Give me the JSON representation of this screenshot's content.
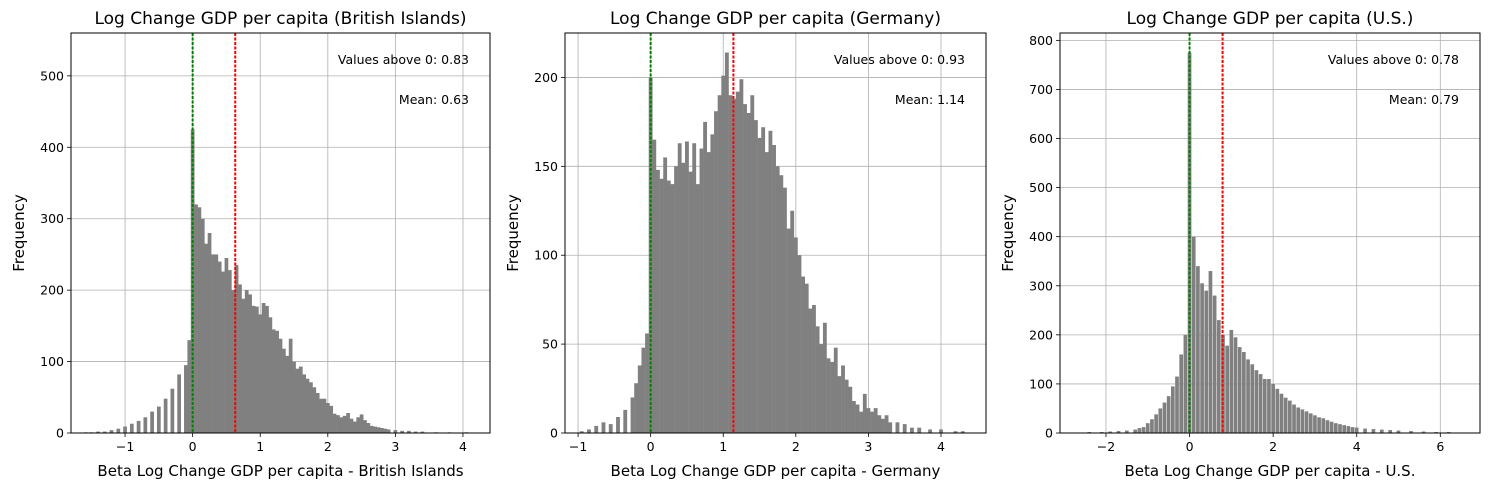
{
  "chart_data": [
    {
      "type": "bar",
      "title": "Log Change GDP per capita (British Islands)",
      "xlabel": "Beta Log Change GDP per capita - British Islands",
      "ylabel": "Frequency",
      "xlim": [
        -1.8,
        4.4
      ],
      "ylim": [
        0,
        560
      ],
      "xticks": [
        -1,
        0,
        1,
        2,
        3,
        4
      ],
      "yticks": [
        0,
        100,
        200,
        300,
        400,
        500
      ],
      "grid": true,
      "bar_color": "#808080",
      "bin_width": 0.055,
      "bins": [
        [
          -1.58,
          1
        ],
        [
          -1.5,
          1
        ],
        [
          -1.4,
          2
        ],
        [
          -1.3,
          2
        ],
        [
          -1.2,
          4
        ],
        [
          -1.1,
          6
        ],
        [
          -1.0,
          9
        ],
        [
          -0.9,
          13
        ],
        [
          -0.8,
          17
        ],
        [
          -0.7,
          22
        ],
        [
          -0.6,
          30
        ],
        [
          -0.5,
          37
        ],
        [
          -0.4,
          48
        ],
        [
          -0.3,
          62
        ],
        [
          -0.2,
          82
        ],
        [
          -0.1,
          95
        ],
        [
          -0.05,
          130
        ],
        [
          0.0,
          425
        ],
        [
          0.05,
          320
        ],
        [
          0.1,
          316
        ],
        [
          0.15,
          300
        ],
        [
          0.2,
          265
        ],
        [
          0.25,
          280
        ],
        [
          0.3,
          250
        ],
        [
          0.35,
          250
        ],
        [
          0.4,
          240
        ],
        [
          0.45,
          226
        ],
        [
          0.5,
          245
        ],
        [
          0.55,
          228
        ],
        [
          0.6,
          200
        ],
        [
          0.65,
          235
        ],
        [
          0.7,
          208
        ],
        [
          0.75,
          188
        ],
        [
          0.8,
          200
        ],
        [
          0.85,
          194
        ],
        [
          0.9,
          178
        ],
        [
          0.95,
          177
        ],
        [
          1.0,
          166
        ],
        [
          1.05,
          182
        ],
        [
          1.1,
          178
        ],
        [
          1.15,
          162
        ],
        [
          1.2,
          145
        ],
        [
          1.25,
          143
        ],
        [
          1.3,
          132
        ],
        [
          1.35,
          118
        ],
        [
          1.4,
          108
        ],
        [
          1.45,
          132
        ],
        [
          1.5,
          100
        ],
        [
          1.55,
          90
        ],
        [
          1.6,
          93
        ],
        [
          1.65,
          82
        ],
        [
          1.7,
          76
        ],
        [
          1.75,
          71
        ],
        [
          1.8,
          64
        ],
        [
          1.85,
          56
        ],
        [
          1.9,
          48
        ],
        [
          1.95,
          48
        ],
        [
          2.0,
          42
        ],
        [
          2.05,
          38
        ],
        [
          2.1,
          27
        ],
        [
          2.15,
          25
        ],
        [
          2.2,
          22
        ],
        [
          2.25,
          24
        ],
        [
          2.3,
          28
        ],
        [
          2.35,
          20
        ],
        [
          2.4,
          16
        ],
        [
          2.45,
          22
        ],
        [
          2.5,
          26
        ],
        [
          2.55,
          18
        ],
        [
          2.6,
          14
        ],
        [
          2.65,
          10
        ],
        [
          2.7,
          9
        ],
        [
          2.75,
          8
        ],
        [
          2.8,
          7
        ],
        [
          2.85,
          6
        ],
        [
          2.9,
          5
        ],
        [
          3.0,
          4
        ],
        [
          3.1,
          3
        ],
        [
          3.2,
          3
        ],
        [
          3.3,
          2
        ],
        [
          3.4,
          2
        ],
        [
          3.6,
          1
        ],
        [
          3.8,
          1
        ],
        [
          4.05,
          1
        ]
      ],
      "zero_line": 0,
      "mean": 0.63,
      "zero_line_color": "#008000",
      "mean_line_color": "#ff0000",
      "annotations": {
        "above_zero": "Values above 0: 0.83",
        "mean": "Mean: 0.63"
      }
    },
    {
      "type": "bar",
      "title": "Log Change GDP per capita (Germany)",
      "xlabel": "Beta Log Change GDP per capita - Germany",
      "ylabel": "Frequency",
      "xlim": [
        -1.18,
        4.62
      ],
      "ylim": [
        0,
        225
      ],
      "xticks": [
        -1,
        0,
        1,
        2,
        3,
        4
      ],
      "yticks": [
        0,
        50,
        100,
        150,
        200
      ],
      "grid": true,
      "bar_color": "#808080",
      "bin_width": 0.053,
      "bins": [
        [
          -0.95,
          1
        ],
        [
          -0.85,
          2
        ],
        [
          -0.75,
          4
        ],
        [
          -0.65,
          6
        ],
        [
          -0.55,
          5
        ],
        [
          -0.45,
          9
        ],
        [
          -0.35,
          13
        ],
        [
          -0.25,
          20
        ],
        [
          -0.2,
          28
        ],
        [
          -0.15,
          38
        ],
        [
          -0.1,
          48
        ],
        [
          -0.05,
          56
        ],
        [
          0.0,
          200
        ],
        [
          0.05,
          165
        ],
        [
          0.1,
          148
        ],
        [
          0.15,
          143
        ],
        [
          0.2,
          155
        ],
        [
          0.25,
          142
        ],
        [
          0.3,
          140
        ],
        [
          0.35,
          150
        ],
        [
          0.4,
          163
        ],
        [
          0.45,
          152
        ],
        [
          0.5,
          164
        ],
        [
          0.55,
          147
        ],
        [
          0.6,
          163
        ],
        [
          0.65,
          140
        ],
        [
          0.7,
          160
        ],
        [
          0.75,
          175
        ],
        [
          0.8,
          158
        ],
        [
          0.85,
          168
        ],
        [
          0.9,
          181
        ],
        [
          0.95,
          190
        ],
        [
          1.0,
          201
        ],
        [
          1.05,
          214
        ],
        [
          1.1,
          190
        ],
        [
          1.15,
          188
        ],
        [
          1.2,
          192
        ],
        [
          1.25,
          199
        ],
        [
          1.3,
          185
        ],
        [
          1.35,
          180
        ],
        [
          1.4,
          190
        ],
        [
          1.45,
          176
        ],
        [
          1.5,
          166
        ],
        [
          1.55,
          172
        ],
        [
          1.6,
          158
        ],
        [
          1.65,
          170
        ],
        [
          1.7,
          162
        ],
        [
          1.75,
          150
        ],
        [
          1.8,
          145
        ],
        [
          1.85,
          138
        ],
        [
          1.9,
          115
        ],
        [
          1.95,
          125
        ],
        [
          2.0,
          110
        ],
        [
          2.05,
          100
        ],
        [
          2.1,
          88
        ],
        [
          2.15,
          84
        ],
        [
          2.2,
          70
        ],
        [
          2.25,
          72
        ],
        [
          2.3,
          60
        ],
        [
          2.35,
          50
        ],
        [
          2.4,
          62
        ],
        [
          2.45,
          42
        ],
        [
          2.5,
          40
        ],
        [
          2.55,
          48
        ],
        [
          2.6,
          32
        ],
        [
          2.65,
          38
        ],
        [
          2.7,
          30
        ],
        [
          2.75,
          26
        ],
        [
          2.8,
          18
        ],
        [
          2.85,
          16
        ],
        [
          2.9,
          12
        ],
        [
          2.95,
          22
        ],
        [
          3.0,
          14
        ],
        [
          3.05,
          12
        ],
        [
          3.1,
          14
        ],
        [
          3.15,
          10
        ],
        [
          3.2,
          8
        ],
        [
          3.25,
          10
        ],
        [
          3.3,
          6
        ],
        [
          3.4,
          6
        ],
        [
          3.5,
          5
        ],
        [
          3.6,
          3
        ],
        [
          3.7,
          3
        ],
        [
          3.85,
          2
        ],
        [
          4.0,
          2
        ],
        [
          4.2,
          1
        ],
        [
          4.3,
          1
        ]
      ],
      "zero_line": 0,
      "mean": 1.14,
      "zero_line_color": "#008000",
      "mean_line_color": "#ff0000",
      "annotations": {
        "above_zero": "Values above 0: 0.93",
        "mean": "Mean: 1.14"
      }
    },
    {
      "type": "bar",
      "title": "Log Change GDP per capita (U.S.)",
      "xlabel": "Beta Log Change GDP per capita - U.S.",
      "ylabel": "Frequency",
      "xlim": [
        -3.1,
        6.95
      ],
      "ylim": [
        0,
        815
      ],
      "xticks": [
        -2,
        0,
        2,
        4,
        6
      ],
      "yticks": [
        0,
        100,
        200,
        300,
        400,
        500,
        600,
        700,
        800
      ],
      "grid": true,
      "bar_color": "#808080",
      "bin_width": 0.088,
      "bins": [
        [
          -2.7,
          1
        ],
        [
          -2.4,
          2
        ],
        [
          -2.1,
          2
        ],
        [
          -1.9,
          3
        ],
        [
          -1.7,
          4
        ],
        [
          -1.5,
          5
        ],
        [
          -1.3,
          7
        ],
        [
          -1.2,
          10
        ],
        [
          -1.1,
          12
        ],
        [
          -1.0,
          20
        ],
        [
          -0.9,
          28
        ],
        [
          -0.8,
          38
        ],
        [
          -0.7,
          50
        ],
        [
          -0.6,
          62
        ],
        [
          -0.5,
          75
        ],
        [
          -0.4,
          95
        ],
        [
          -0.3,
          115
        ],
        [
          -0.2,
          160
        ],
        [
          -0.1,
          200
        ],
        [
          0.0,
          775
        ],
        [
          0.1,
          400
        ],
        [
          0.2,
          340
        ],
        [
          0.3,
          305
        ],
        [
          0.4,
          290
        ],
        [
          0.5,
          330
        ],
        [
          0.6,
          280
        ],
        [
          0.7,
          230
        ],
        [
          0.8,
          200
        ],
        [
          0.9,
          178
        ],
        [
          1.0,
          210
        ],
        [
          1.1,
          195
        ],
        [
          1.2,
          175
        ],
        [
          1.3,
          165
        ],
        [
          1.4,
          150
        ],
        [
          1.5,
          140
        ],
        [
          1.6,
          128
        ],
        [
          1.7,
          120
        ],
        [
          1.8,
          110
        ],
        [
          1.9,
          110
        ],
        [
          2.0,
          100
        ],
        [
          2.1,
          90
        ],
        [
          2.2,
          80
        ],
        [
          2.3,
          72
        ],
        [
          2.4,
          66
        ],
        [
          2.5,
          58
        ],
        [
          2.6,
          52
        ],
        [
          2.7,
          48
        ],
        [
          2.8,
          44
        ],
        [
          2.9,
          40
        ],
        [
          3.0,
          36
        ],
        [
          3.1,
          32
        ],
        [
          3.2,
          30
        ],
        [
          3.3,
          26
        ],
        [
          3.4,
          23
        ],
        [
          3.5,
          20
        ],
        [
          3.6,
          18
        ],
        [
          3.7,
          16
        ],
        [
          3.8,
          14
        ],
        [
          3.9,
          12
        ],
        [
          4.0,
          11
        ],
        [
          4.2,
          9
        ],
        [
          4.4,
          8
        ],
        [
          4.6,
          7
        ],
        [
          4.8,
          6
        ],
        [
          5.0,
          5
        ],
        [
          5.3,
          4
        ],
        [
          5.6,
          3
        ],
        [
          5.9,
          2
        ],
        [
          6.2,
          2
        ],
        [
          6.6,
          1
        ]
      ],
      "zero_line": 0,
      "mean": 0.79,
      "zero_line_color": "#008000",
      "mean_line_color": "#ff0000",
      "annotations": {
        "above_zero": "Values above 0: 0.78",
        "mean": "Mean: 0.79"
      }
    }
  ]
}
